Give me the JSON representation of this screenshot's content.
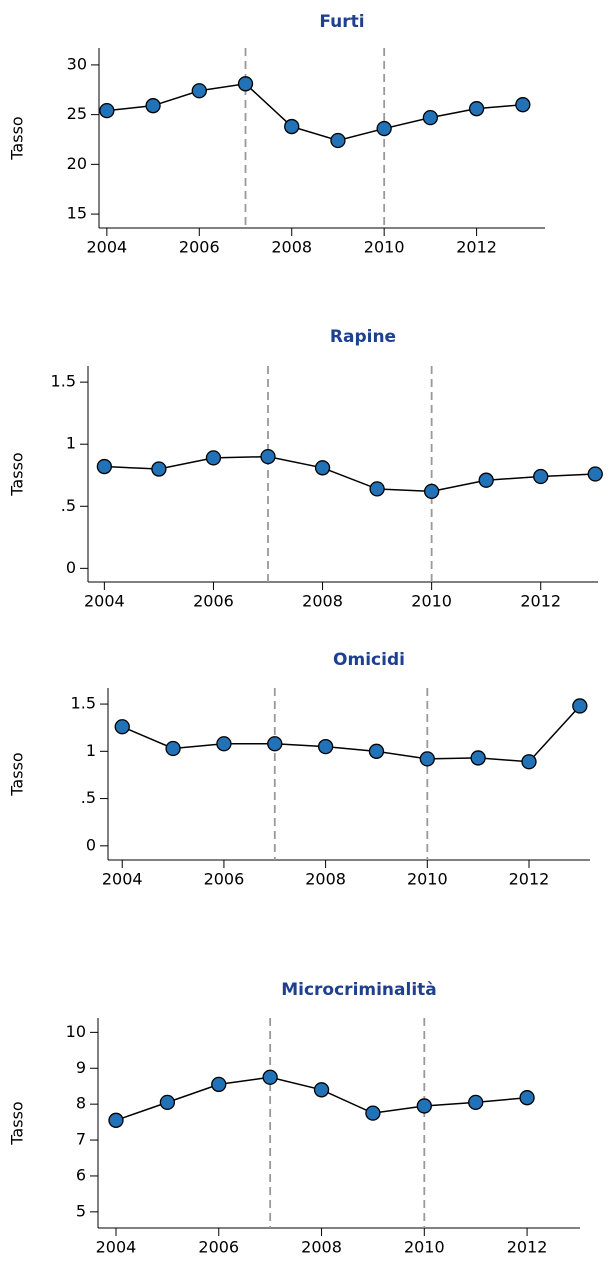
{
  "chart_data": [
    {
      "type": "line",
      "title": "Furti",
      "y_label": "Tasso",
      "x": [
        2004,
        2005,
        2006,
        2007,
        2008,
        2009,
        2010,
        2011,
        2012,
        2013
      ],
      "values": [
        25.4,
        25.9,
        27.4,
        28.1,
        23.8,
        22.4,
        23.6,
        24.7,
        25.6,
        26.0
      ],
      "color": "#2272b8",
      "xlim": [
        2003.83,
        2013.48
      ],
      "xticks": [
        2004,
        2006,
        2008,
        2010,
        2012
      ],
      "ylim": [
        13.6,
        31.7
      ],
      "yticks": [
        15,
        20,
        25,
        30
      ],
      "vlines": [
        2007,
        2010
      ]
    },
    {
      "type": "line",
      "title": "Rapine",
      "y_label": "Tasso",
      "x": [
        2004,
        2005,
        2006,
        2007,
        2008,
        2009,
        2010,
        2011,
        2012,
        2013
      ],
      "values": [
        0.82,
        0.8,
        0.89,
        0.9,
        0.81,
        0.64,
        0.62,
        0.71,
        0.74,
        0.76
      ],
      "color": "#2272b8",
      "xlim": [
        2003.7,
        2013.05
      ],
      "xticks": [
        2004,
        2006,
        2008,
        2010,
        2012
      ],
      "ylim": [
        -0.11,
        1.63
      ],
      "yticks": [
        0,
        {
          "value": 0.5,
          "label": ".5"
        },
        1,
        1.5
      ],
      "vlines": [
        2007,
        2010
      ]
    },
    {
      "type": "line",
      "title": "Omicidi",
      "y_label": "Tasso",
      "x": [
        2004,
        2005,
        2006,
        2007,
        2008,
        2009,
        2010,
        2011,
        2012,
        2013
      ],
      "values": [
        1.26,
        1.03,
        1.08,
        1.08,
        1.05,
        1.0,
        0.92,
        0.93,
        0.89,
        1.48
      ],
      "color": "#2272b8",
      "xlim": [
        2003.72,
        2013.2
      ],
      "xticks": [
        2004,
        2006,
        2008,
        2010,
        2012
      ],
      "ylim": [
        -0.15,
        1.67
      ],
      "yticks": [
        0,
        {
          "value": 0.5,
          "label": ".5"
        },
        1,
        1.5
      ],
      "vlines": [
        2007,
        2010
      ]
    },
    {
      "type": "line",
      "title": "Microcriminalità",
      "y_label": "Tasso",
      "x": [
        2004,
        2005,
        2006,
        2007,
        2008,
        2009,
        2010,
        2011,
        2012,
        2013
      ],
      "values": [
        7.55,
        8.05,
        8.55,
        8.75,
        8.4,
        7.75,
        7.95,
        8.05,
        8.18,
        null
      ],
      "color": "#2272b8",
      "xlim": [
        2003.65,
        2013.03
      ],
      "xticks": [
        2004,
        2006,
        2008,
        2010,
        2012
      ],
      "ylim": [
        4.55,
        10.4
      ],
      "yticks": [
        5,
        6,
        7,
        8,
        9,
        10
      ],
      "vlines": [
        2007,
        2010
      ]
    }
  ]
}
